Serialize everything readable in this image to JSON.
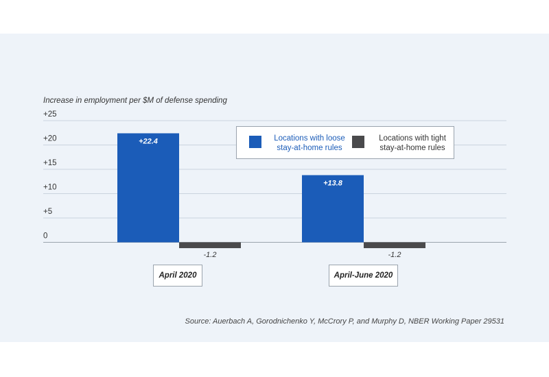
{
  "chart_data": {
    "type": "bar",
    "subtitle": "Increase in employment per $M of defense spending",
    "categories": [
      "April 2020",
      "April-June 2020"
    ],
    "series": [
      {
        "name": "Locations with loose stay-at-home rules",
        "values": [
          22.4,
          13.8
        ],
        "labels": [
          "+22.4",
          "+13.8"
        ],
        "color": "#1b5cb8"
      },
      {
        "name": "Locations with tight stay-at-home rules",
        "values": [
          -1.2,
          -1.2
        ],
        "labels": [
          "-1.2",
          "-1.2"
        ],
        "color": "#4a4a4c"
      }
    ],
    "y_ticks": [
      0,
      5,
      10,
      15,
      20,
      25
    ],
    "y_tick_labels": [
      "0",
      "+5",
      "+10",
      "+15",
      "+20",
      "+25"
    ],
    "ylim": [
      -1.2,
      25
    ],
    "grid": true,
    "legend_position": "top-right",
    "source": "Source:  Auerbach A, Gorodnichenko Y, McCrory P, and Murphy D, NBER Working Paper 29531"
  },
  "colors": {
    "background": "#eef3f9",
    "gridline": "#c9d3de",
    "axis": "#9aa3ad"
  }
}
